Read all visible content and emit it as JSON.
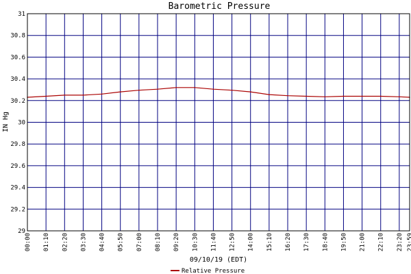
{
  "chart_data": {
    "type": "line",
    "title": "Barometric Pressure",
    "xlabel": "09/10/19 (EDT)",
    "ylabel": "IN Hg",
    "ylim": [
      29,
      31
    ],
    "yticks": [
      "29",
      "29.2",
      "29.4",
      "29.6",
      "29.8",
      "30",
      "30.2",
      "30.4",
      "30.6",
      "30.8",
      "31"
    ],
    "xticks": [
      "00:00",
      "01:10",
      "02:20",
      "03:30",
      "04:40",
      "05:50",
      "07:00",
      "08:10",
      "09:20",
      "10:30",
      "11:40",
      "12:50",
      "14:00",
      "15:10",
      "16:20",
      "17:30",
      "18:40",
      "19:50",
      "21:00",
      "22:10",
      "23:20",
      "23:59"
    ],
    "grid": true,
    "legend_position": "bottom",
    "colors": {
      "grid": "#000080",
      "line": "#aa0000",
      "frame": "#000000"
    },
    "series": [
      {
        "name": "Relative Pressure",
        "x": [
          "00:00",
          "01:10",
          "02:20",
          "03:30",
          "04:40",
          "05:50",
          "07:00",
          "08:10",
          "09:20",
          "10:30",
          "11:40",
          "12:50",
          "14:00",
          "15:10",
          "16:20",
          "17:30",
          "18:40",
          "19:50",
          "21:00",
          "22:10",
          "23:20",
          "23:59"
        ],
        "values": [
          30.23,
          30.24,
          30.25,
          30.25,
          30.26,
          30.28,
          30.295,
          30.305,
          30.32,
          30.32,
          30.305,
          30.295,
          30.28,
          30.255,
          30.245,
          30.24,
          30.235,
          30.24,
          30.24,
          30.24,
          30.235,
          30.23
        ]
      }
    ]
  }
}
